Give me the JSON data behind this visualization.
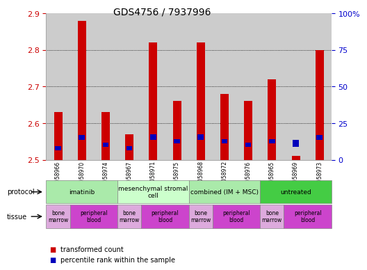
{
  "title": "GDS4756 / 7937996",
  "samples": [
    "GSM1058966",
    "GSM1058970",
    "GSM1058974",
    "GSM1058967",
    "GSM1058971",
    "GSM1058975",
    "GSM1058968",
    "GSM1058972",
    "GSM1058976",
    "GSM1058965",
    "GSM1058969",
    "GSM1058973"
  ],
  "red_values": [
    2.63,
    2.88,
    2.63,
    2.57,
    2.82,
    2.66,
    2.82,
    2.68,
    2.66,
    2.72,
    2.51,
    2.8
  ],
  "blue_y_values": [
    2.525,
    2.555,
    2.535,
    2.525,
    2.555,
    2.545,
    2.555,
    2.545,
    2.535,
    2.545,
    2.535,
    2.555
  ],
  "blue_heights": [
    0.012,
    0.012,
    0.012,
    0.012,
    0.014,
    0.012,
    0.014,
    0.012,
    0.012,
    0.012,
    0.02,
    0.012
  ],
  "ylim": [
    2.5,
    2.9
  ],
  "y_ticks": [
    2.5,
    2.6,
    2.7,
    2.8,
    2.9
  ],
  "y_right_ticks_pct": [
    0,
    25,
    50,
    75,
    100
  ],
  "y_right_labels": [
    "0",
    "25",
    "50",
    "75",
    "100%"
  ],
  "bar_color_red": "#cc0000",
  "bar_color_blue": "#0000bb",
  "red_bar_width": 0.35,
  "blue_bar_width": 0.25,
  "protocols": [
    {
      "label": "imatinib",
      "start": 0,
      "end": 3,
      "color": "#aaeaaa"
    },
    {
      "label": "mesenchymal stromal\ncell",
      "start": 3,
      "end": 6,
      "color": "#ccffcc"
    },
    {
      "label": "combined (IM + MSC)",
      "start": 6,
      "end": 9,
      "color": "#aaeaaa"
    },
    {
      "label": "untreated",
      "start": 9,
      "end": 12,
      "color": "#44cc44"
    }
  ],
  "tissues": [
    {
      "label": "bone\nmarrow",
      "start": 0,
      "end": 1,
      "color": "#ddaadd"
    },
    {
      "label": "peripheral\nblood",
      "start": 1,
      "end": 3,
      "color": "#cc44cc"
    },
    {
      "label": "bone\nmarrow",
      "start": 3,
      "end": 4,
      "color": "#ddaadd"
    },
    {
      "label": "peripheral\nblood",
      "start": 4,
      "end": 6,
      "color": "#cc44cc"
    },
    {
      "label": "bone\nmarrow",
      "start": 6,
      "end": 7,
      "color": "#ddaadd"
    },
    {
      "label": "peripheral\nblood",
      "start": 7,
      "end": 9,
      "color": "#cc44cc"
    },
    {
      "label": "bone\nmarrow",
      "start": 9,
      "end": 10,
      "color": "#ddaadd"
    },
    {
      "label": "peripheral\nblood",
      "start": 10,
      "end": 12,
      "color": "#cc44cc"
    }
  ],
  "col_bg_color": "#cccccc",
  "protocol_row_label": "protocol",
  "tissue_row_label": "tissue",
  "legend_red": "transformed count",
  "legend_blue": "percentile rank within the sample",
  "background_color": "#ffffff",
  "left_axis_color": "#cc0000",
  "right_axis_color": "#0000cc"
}
